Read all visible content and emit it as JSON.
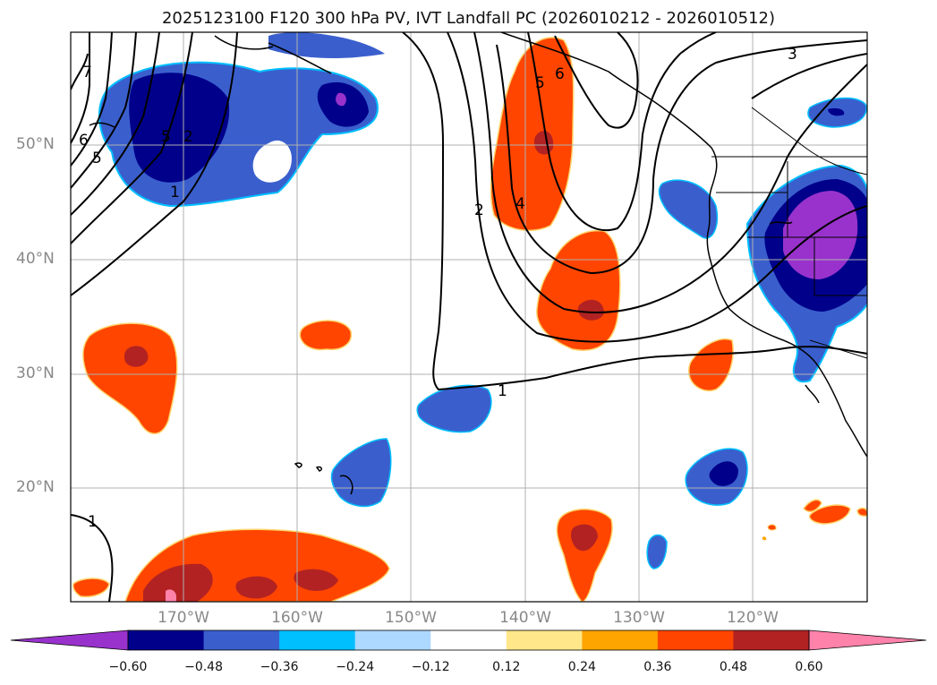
{
  "title": "2025123100 F120 300 hPa PV, IVT Landfall PC (2026010212 - 2026010512)",
  "lat_labels": [
    "50°N",
    "40°N",
    "30°N",
    "20°N"
  ],
  "lon_labels": [
    "170°W",
    "160°W",
    "150°W",
    "140°W",
    "130°W",
    "120°W"
  ],
  "colorbar": {
    "ticks": [
      "−0.60",
      "−0.48",
      "−0.36",
      "−0.24",
      "−0.12",
      "0.12",
      "0.24",
      "0.36",
      "0.48",
      "0.60"
    ],
    "colors": [
      "#9932cc",
      "#00008b",
      "#3a5fcd",
      "#00bfff",
      "#add8ff",
      "#ffffff",
      "#ffe78a",
      "#ffa500",
      "#ff4500",
      "#b22222",
      "#ff82ab"
    ]
  },
  "contour_labels": [
    "1",
    "1",
    "1",
    "2",
    "3",
    "4",
    "5",
    "5",
    "6",
    "6",
    "7",
    "2",
    "5"
  ]
}
